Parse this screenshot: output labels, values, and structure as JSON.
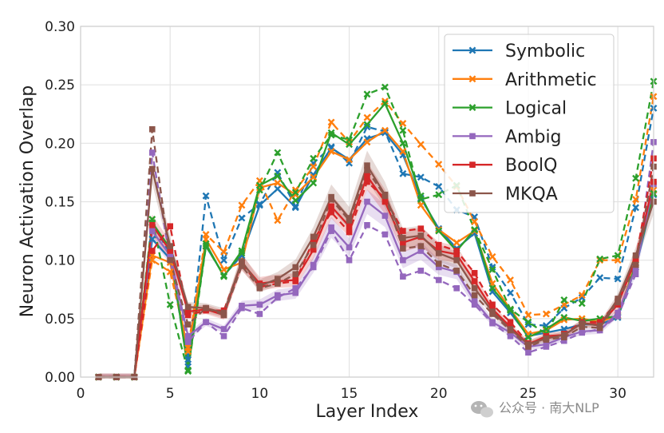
{
  "chart_data": {
    "type": "line",
    "xlabel": "Layer Index",
    "ylabel": "Neuron Activation Overlap",
    "xlim": [
      0,
      32
    ],
    "ylim": [
      0,
      0.3
    ],
    "xticks": [
      0,
      5,
      10,
      15,
      20,
      25,
      30
    ],
    "yticks": [
      0.0,
      0.05,
      0.1,
      0.15,
      0.2,
      0.25,
      0.3
    ],
    "xtick_labels": [
      "0",
      "5",
      "10",
      "15",
      "20",
      "25",
      "30"
    ],
    "ytick_labels": [
      "0.00",
      "0.05",
      "0.10",
      "0.15",
      "0.20",
      "0.25",
      "0.30"
    ],
    "grid": true,
    "legend_position": "top-right",
    "x": [
      1,
      2,
      3,
      4,
      5,
      6,
      7,
      8,
      9,
      10,
      11,
      12,
      13,
      14,
      15,
      16,
      17,
      18,
      19,
      20,
      21,
      22,
      23,
      24,
      25,
      26,
      27,
      28,
      29,
      30,
      31,
      32
    ],
    "series": [
      {
        "name": "Symbolic",
        "color": "#1f77b4",
        "marker": "x",
        "style": "solid",
        "values": [
          0,
          0,
          0,
          0.118,
          0.101,
          0.015,
          0.112,
          0.087,
          0.104,
          0.147,
          0.161,
          0.145,
          0.173,
          0.196,
          0.186,
          0.204,
          0.209,
          0.19,
          0.153,
          0.127,
          0.11,
          0.123,
          0.073,
          0.055,
          0.035,
          0.038,
          0.041,
          0.045,
          0.045,
          0.051,
          0.094,
          0.156
        ]
      },
      {
        "name": "Symbolic",
        "color": "#1f77b4",
        "marker": "x",
        "style": "dashed",
        "values": [
          0,
          0,
          0,
          0.132,
          0.105,
          0.009,
          0.155,
          0.1,
          0.136,
          0.148,
          0.175,
          0.146,
          0.183,
          0.197,
          0.183,
          0.214,
          0.21,
          0.174,
          0.171,
          0.163,
          0.143,
          0.137,
          0.094,
          0.072,
          0.045,
          0.044,
          0.059,
          0.068,
          0.085,
          0.084,
          0.145,
          0.23
        ]
      },
      {
        "name": "Arithmetic",
        "color": "#ff7f0e",
        "marker": "x",
        "style": "solid",
        "values": [
          0,
          0,
          0,
          0.104,
          0.098,
          0.022,
          0.118,
          0.092,
          0.098,
          0.162,
          0.166,
          0.156,
          0.171,
          0.193,
          0.186,
          0.201,
          0.211,
          0.193,
          0.147,
          0.126,
          0.115,
          0.125,
          0.08,
          0.058,
          0.037,
          0.04,
          0.049,
          0.05,
          0.047,
          0.053,
          0.097,
          0.16
        ]
      },
      {
        "name": "Arithmetic",
        "color": "#ff7f0e",
        "marker": "x",
        "style": "dashed",
        "values": [
          0,
          0,
          0,
          0.1,
          0.09,
          0.025,
          0.122,
          0.107,
          0.147,
          0.168,
          0.134,
          0.16,
          0.18,
          0.218,
          0.201,
          0.222,
          0.236,
          0.217,
          0.199,
          0.182,
          0.163,
          0.133,
          0.103,
          0.083,
          0.053,
          0.054,
          0.062,
          0.07,
          0.1,
          0.1,
          0.152,
          0.24
        ]
      },
      {
        "name": "Logical",
        "color": "#2ca02c",
        "marker": "x",
        "style": "solid",
        "values": [
          0,
          0,
          0,
          0.132,
          0.11,
          0.006,
          0.114,
          0.086,
          0.108,
          0.164,
          0.172,
          0.151,
          0.166,
          0.209,
          0.199,
          0.216,
          0.234,
          0.2,
          0.155,
          0.125,
          0.108,
          0.126,
          0.076,
          0.057,
          0.034,
          0.041,
          0.051,
          0.048,
          0.05,
          0.052,
          0.096,
          0.157
        ]
      },
      {
        "name": "Logical",
        "color": "#2ca02c",
        "marker": "x",
        "style": "dashed",
        "values": [
          0,
          0,
          0,
          0.135,
          0.062,
          0.005,
          0.112,
          0.087,
          0.106,
          0.16,
          0.192,
          0.158,
          0.187,
          0.207,
          0.203,
          0.242,
          0.248,
          0.211,
          0.152,
          0.156,
          0.164,
          0.126,
          0.092,
          0.058,
          0.047,
          0.037,
          0.066,
          0.063,
          0.101,
          0.104,
          0.17,
          0.253
        ]
      },
      {
        "name": "Ambig",
        "color": "#9467bd",
        "marker": "s",
        "style": "solid",
        "values": [
          0,
          0,
          0,
          0.125,
          0.104,
          0.035,
          0.047,
          0.041,
          0.061,
          0.062,
          0.07,
          0.072,
          0.096,
          0.128,
          0.111,
          0.15,
          0.138,
          0.1,
          0.108,
          0.094,
          0.09,
          0.065,
          0.047,
          0.038,
          0.026,
          0.028,
          0.034,
          0.039,
          0.04,
          0.055,
          0.093,
          0.165
        ]
      },
      {
        "name": "Ambig",
        "color": "#9467bd",
        "marker": "s",
        "style": "dashed",
        "values": [
          0,
          0,
          0,
          0.192,
          0.1,
          0.03,
          0.047,
          0.035,
          0.059,
          0.054,
          0.068,
          0.076,
          0.094,
          0.125,
          0.1,
          0.13,
          0.122,
          0.086,
          0.091,
          0.083,
          0.076,
          0.062,
          0.046,
          0.035,
          0.021,
          0.026,
          0.031,
          0.038,
          0.041,
          0.052,
          0.088,
          0.201
        ]
      },
      {
        "name": "BoolQ",
        "color": "#d62728",
        "marker": "s",
        "style": "solid",
        "values": [
          0,
          0,
          0,
          0.13,
          0.108,
          0.056,
          0.058,
          0.053,
          0.098,
          0.08,
          0.082,
          0.083,
          0.109,
          0.146,
          0.129,
          0.172,
          0.15,
          0.115,
          0.12,
          0.108,
          0.105,
          0.082,
          0.058,
          0.043,
          0.028,
          0.035,
          0.036,
          0.046,
          0.045,
          0.062,
          0.101,
          0.167
        ]
      },
      {
        "name": "BoolQ",
        "color": "#d62728",
        "marker": "s",
        "style": "dashed",
        "values": [
          0,
          0,
          0,
          0.108,
          0.129,
          0.053,
          0.057,
          0.057,
          0.098,
          0.077,
          0.08,
          0.082,
          0.117,
          0.141,
          0.124,
          0.167,
          0.153,
          0.125,
          0.127,
          0.113,
          0.108,
          0.089,
          0.062,
          0.047,
          0.029,
          0.033,
          0.037,
          0.047,
          0.047,
          0.065,
          0.1,
          0.187
        ]
      },
      {
        "name": "MKQA",
        "color": "#8c564b",
        "marker": "s",
        "style": "solid",
        "values": [
          0,
          0,
          0,
          0.178,
          0.112,
          0.06,
          0.059,
          0.055,
          0.099,
          0.078,
          0.084,
          0.094,
          0.12,
          0.154,
          0.136,
          0.181,
          0.156,
          0.119,
          0.121,
          0.106,
          0.1,
          0.076,
          0.056,
          0.041,
          0.028,
          0.033,
          0.036,
          0.046,
          0.044,
          0.067,
          0.104,
          0.15
        ]
      },
      {
        "name": "MKQA",
        "color": "#8c564b",
        "marker": "s",
        "style": "dashed",
        "values": [
          0,
          0,
          0,
          0.212,
          0.1,
          0.045,
          0.059,
          0.053,
          0.095,
          0.076,
          0.08,
          0.088,
          0.113,
          0.152,
          0.134,
          0.177,
          0.155,
          0.11,
          0.112,
          0.097,
          0.091,
          0.07,
          0.054,
          0.04,
          0.026,
          0.032,
          0.034,
          0.043,
          0.042,
          0.064,
          0.096,
          0.18
        ]
      }
    ],
    "legend": [
      {
        "name": "Symbolic",
        "color": "#1f77b4",
        "marker": "x"
      },
      {
        "name": "Arithmetic",
        "color": "#ff7f0e",
        "marker": "x"
      },
      {
        "name": "Logical",
        "color": "#2ca02c",
        "marker": "x"
      },
      {
        "name": "Ambig",
        "color": "#9467bd",
        "marker": "s"
      },
      {
        "name": "BoolQ",
        "color": "#d62728",
        "marker": "s"
      },
      {
        "name": "MKQA",
        "color": "#8c564b",
        "marker": "s"
      }
    ]
  },
  "watermark": {
    "text": "公众号 · 南大NLP",
    "icon": "wechat-icon"
  }
}
